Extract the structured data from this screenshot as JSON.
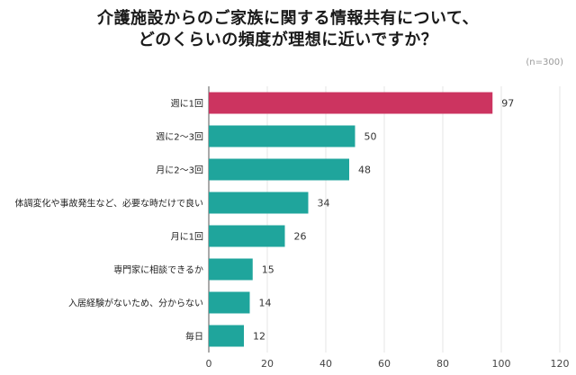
{
  "chart_data": {
    "type": "bar",
    "orientation": "horizontal",
    "title_lines": [
      "介護施設からのご家族に関する情報共有について、",
      "どのくらいの頻度が理想に近いですか？"
    ],
    "note": "(n=300)",
    "categories": [
      "週に1回",
      "週に2〜3回",
      "月に2〜3回",
      "体調変化や事故発生など、必要な時だけで良い",
      "月に1回",
      "専門家に相談できるか",
      "入居経験がないため、分からない",
      "毎日"
    ],
    "values": [
      97,
      50,
      48,
      34,
      26,
      15,
      14,
      12
    ],
    "value_labels": [
      "97",
      "50",
      "48",
      "34",
      "26",
      "15",
      "14",
      "12"
    ],
    "xlim": [
      0,
      120
    ],
    "xticks": [
      0,
      20,
      40,
      60,
      80,
      100,
      120
    ],
    "xtick_labels": [
      "0",
      "20",
      "40",
      "60",
      "80",
      "100",
      "120"
    ],
    "grid": true,
    "colors": {
      "highlight": "#CC3460",
      "bar": "#1FA59C",
      "grid": "#e6e6e6",
      "axis": "#555555"
    },
    "highlight_index": 0
  }
}
